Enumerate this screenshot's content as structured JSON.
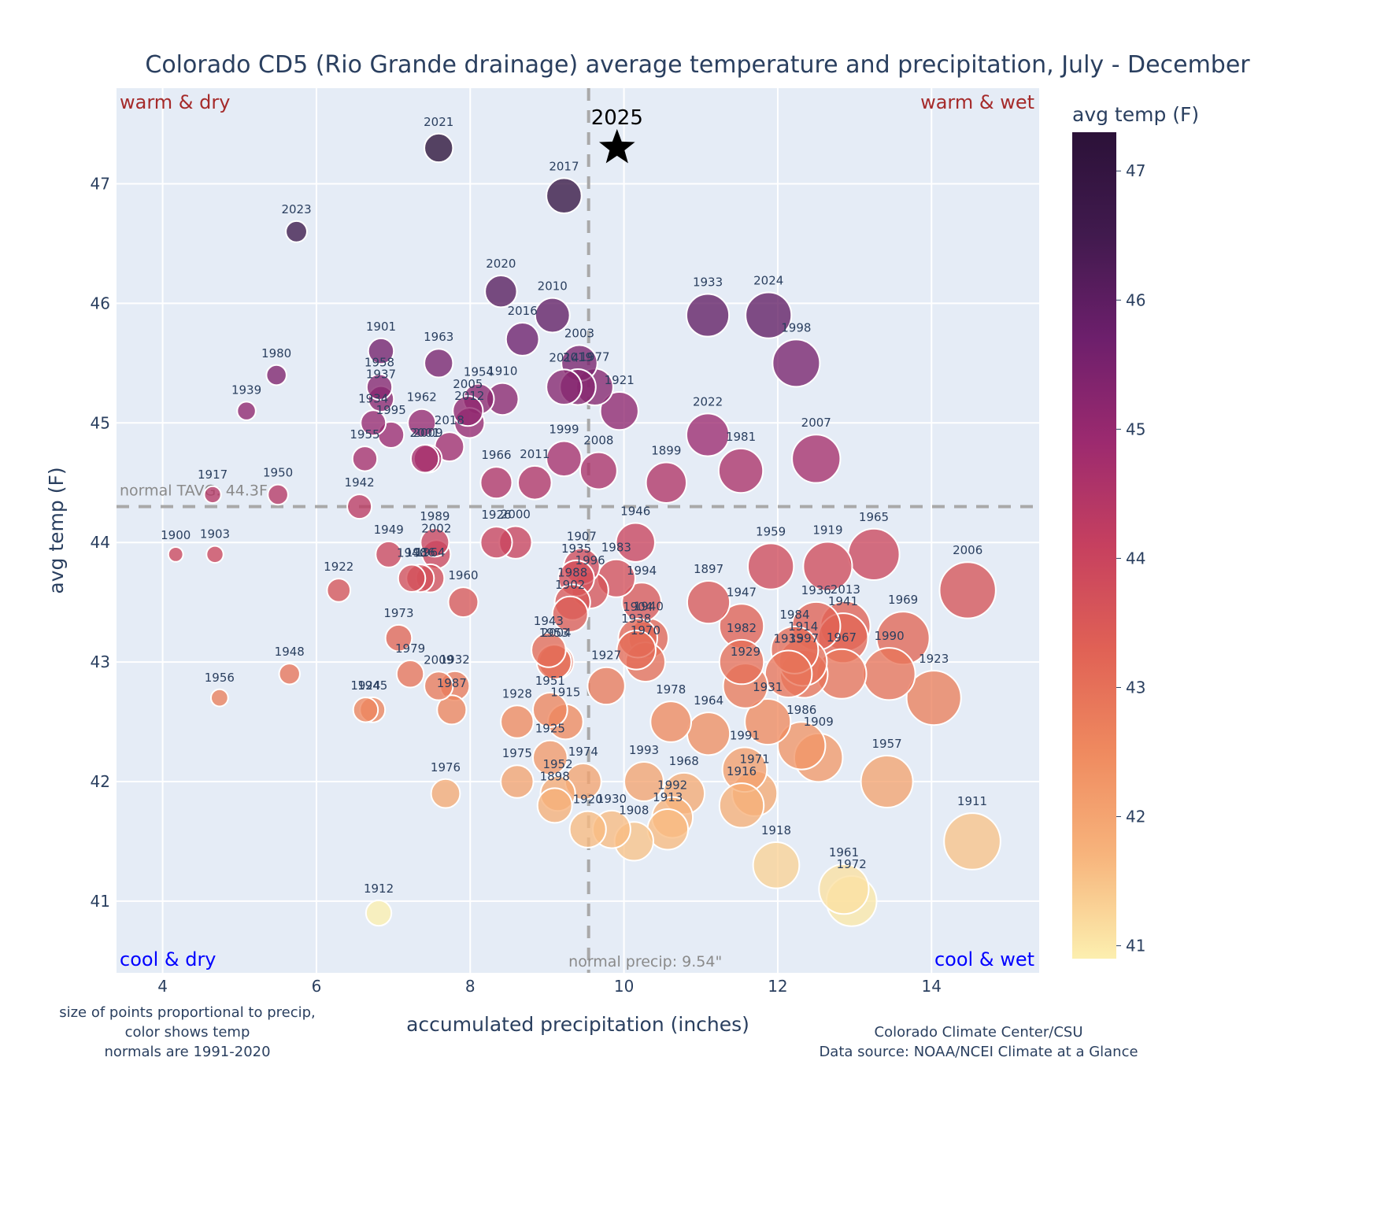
{
  "chart_data": {
    "type": "scatter",
    "title": "Colorado CD5 (Rio Grande drainage) average temperature and precipitation, July - December",
    "xlabel": "accumulated precipitation (inches)",
    "ylabel": "avg temp (F)",
    "xlim": [
      3.4,
      15.4
    ],
    "ylim": [
      40.4,
      47.8
    ],
    "xticks": [
      4,
      6,
      8,
      10,
      12,
      14
    ],
    "yticks": [
      41,
      42,
      43,
      44,
      45,
      46,
      47
    ],
    "grid": true,
    "colorbar": {
      "title": "avg temp (F)",
      "range": [
        40.9,
        47.3
      ],
      "ticks": [
        41,
        42,
        43,
        44,
        45,
        46,
        47
      ],
      "colorscale": [
        "#fcefaf",
        "#f7b47c",
        "#ef8a5f",
        "#e06155",
        "#c6405f",
        "#9c2a6f",
        "#6d1f6c",
        "#411a4e",
        "#2b1138"
      ]
    },
    "normals": {
      "temp": 44.3,
      "temp_label": "normal TAVG: 44.3F",
      "precip": 9.54,
      "precip_label": "normal precip: 9.54\""
    },
    "quadrant_labels": {
      "top_left": "warm & dry",
      "top_right": "warm & wet",
      "bottom_left": "cool & dry",
      "bottom_right": "cool & wet"
    },
    "current_year": {
      "label": "2025",
      "x": 9.91,
      "y": 47.3,
      "marker": "star"
    },
    "notes": {
      "left": [
        "size of points proportional to precip,",
        "color shows temp",
        "normals are 1991-2020"
      ],
      "right": [
        "Colorado Climate Center/CSU",
        "Data source: NOAA/NCEI Climate at a Glance"
      ]
    },
    "points": [
      {
        "year": "2021",
        "x": 7.59,
        "y": 47.3
      },
      {
        "year": "2017",
        "x": 9.22,
        "y": 46.9
      },
      {
        "year": "2023",
        "x": 5.74,
        "y": 46.6
      },
      {
        "year": "2020",
        "x": 8.4,
        "y": 46.1
      },
      {
        "year": "2010",
        "x": 9.07,
        "y": 45.9
      },
      {
        "year": "1933",
        "x": 11.09,
        "y": 45.9
      },
      {
        "year": "2024",
        "x": 11.88,
        "y": 45.9
      },
      {
        "year": "2016",
        "x": 8.68,
        "y": 45.7
      },
      {
        "year": "1998",
        "x": 12.24,
        "y": 45.5
      },
      {
        "year": "1901",
        "x": 6.84,
        "y": 45.6
      },
      {
        "year": "1963",
        "x": 7.59,
        "y": 45.5
      },
      {
        "year": "1980",
        "x": 5.48,
        "y": 45.4
      },
      {
        "year": "2003",
        "x": 9.42,
        "y": 45.5
      },
      {
        "year": "1958",
        "x": 6.82,
        "y": 45.3
      },
      {
        "year": "2014",
        "x": 9.22,
        "y": 45.3
      },
      {
        "year": "2019",
        "x": 9.4,
        "y": 45.3
      },
      {
        "year": "1977",
        "x": 9.62,
        "y": 45.3
      },
      {
        "year": "1937",
        "x": 6.84,
        "y": 45.2
      },
      {
        "year": "1954",
        "x": 8.11,
        "y": 45.2
      },
      {
        "year": "1910",
        "x": 8.42,
        "y": 45.2
      },
      {
        "year": "1939",
        "x": 5.09,
        "y": 45.1
      },
      {
        "year": "1921",
        "x": 9.94,
        "y": 45.1
      },
      {
        "year": "1934",
        "x": 6.74,
        "y": 45.0
      },
      {
        "year": "1962",
        "x": 7.37,
        "y": 45.0
      },
      {
        "year": "2005",
        "x": 7.97,
        "y": 45.1
      },
      {
        "year": "2012",
        "x": 7.99,
        "y": 45.0
      },
      {
        "year": "1995",
        "x": 6.97,
        "y": 44.9
      },
      {
        "year": "2022",
        "x": 11.09,
        "y": 44.9
      },
      {
        "year": "2018",
        "x": 7.73,
        "y": 44.8
      },
      {
        "year": "2001",
        "x": 7.41,
        "y": 44.7
      },
      {
        "year": "2009",
        "x": 7.45,
        "y": 44.7
      },
      {
        "year": "1955",
        "x": 6.63,
        "y": 44.7
      },
      {
        "year": "1999",
        "x": 9.22,
        "y": 44.7
      },
      {
        "year": "2007",
        "x": 12.5,
        "y": 44.7
      },
      {
        "year": "2008",
        "x": 9.67,
        "y": 44.6
      },
      {
        "year": "1981",
        "x": 11.52,
        "y": 44.6
      },
      {
        "year": "1966",
        "x": 8.34,
        "y": 44.5
      },
      {
        "year": "2011",
        "x": 8.84,
        "y": 44.5
      },
      {
        "year": "1899",
        "x": 10.55,
        "y": 44.5
      },
      {
        "year": "1917",
        "x": 4.65,
        "y": 44.4
      },
      {
        "year": "1950",
        "x": 5.5,
        "y": 44.4
      },
      {
        "year": "1942",
        "x": 6.56,
        "y": 44.3
      },
      {
        "year": "1926",
        "x": 8.34,
        "y": 44.0
      },
      {
        "year": "2000",
        "x": 8.59,
        "y": 44.0
      },
      {
        "year": "1946",
        "x": 10.15,
        "y": 44.0
      },
      {
        "year": "1989",
        "x": 7.54,
        "y": 44.0
      },
      {
        "year": "1900",
        "x": 4.17,
        "y": 43.9
      },
      {
        "year": "1903",
        "x": 4.68,
        "y": 43.9
      },
      {
        "year": "1949",
        "x": 6.94,
        "y": 43.9
      },
      {
        "year": "2002",
        "x": 7.56,
        "y": 43.9
      },
      {
        "year": "1965",
        "x": 13.25,
        "y": 43.9
      },
      {
        "year": "1959",
        "x": 11.91,
        "y": 43.8
      },
      {
        "year": "1919",
        "x": 12.65,
        "y": 43.8
      },
      {
        "year": "1907",
        "x": 9.45,
        "y": 43.8
      },
      {
        "year": "1940",
        "x": 7.24,
        "y": 43.7
      },
      {
        "year": "1986",
        "x": 7.35,
        "y": 43.7
      },
      {
        "year": "1964",
        "x": 7.48,
        "y": 43.7
      },
      {
        "year": "1935",
        "x": 9.38,
        "y": 43.7
      },
      {
        "year": "1983",
        "x": 9.9,
        "y": 43.7
      },
      {
        "year": "1996",
        "x": 9.56,
        "y": 43.6
      },
      {
        "year": "1922",
        "x": 6.29,
        "y": 43.6
      },
      {
        "year": "2006",
        "x": 14.47,
        "y": 43.6
      },
      {
        "year": "1988",
        "x": 9.33,
        "y": 43.5
      },
      {
        "year": "1994",
        "x": 10.23,
        "y": 43.5
      },
      {
        "year": "1897",
        "x": 11.1,
        "y": 43.5
      },
      {
        "year": "1960",
        "x": 7.91,
        "y": 43.5
      },
      {
        "year": "1902",
        "x": 9.3,
        "y": 43.4
      },
      {
        "year": "1936",
        "x": 12.5,
        "y": 43.3
      },
      {
        "year": "1947",
        "x": 11.53,
        "y": 43.3
      },
      {
        "year": "2013",
        "x": 12.88,
        "y": 43.3
      },
      {
        "year": "1941",
        "x": 12.85,
        "y": 43.2
      },
      {
        "year": "1969",
        "x": 13.63,
        "y": 43.2
      },
      {
        "year": "1973",
        "x": 7.07,
        "y": 43.2
      },
      {
        "year": "1904",
        "x": 10.18,
        "y": 43.2
      },
      {
        "year": "1940b",
        "x": 10.32,
        "y": 43.2
      },
      {
        "year": "1938",
        "x": 10.16,
        "y": 43.1
      },
      {
        "year": "1943",
        "x": 9.02,
        "y": 43.1
      },
      {
        "year": "1984",
        "x": 12.22,
        "y": 43.1
      },
      {
        "year": "1914",
        "x": 12.33,
        "y": 43.0
      },
      {
        "year": "1970",
        "x": 10.28,
        "y": 43.0
      },
      {
        "year": "1953",
        "x": 9.09,
        "y": 43.0
      },
      {
        "year": "2004",
        "x": 9.12,
        "y": 43.0
      },
      {
        "year": "1982",
        "x": 11.53,
        "y": 43.0
      },
      {
        "year": "1990",
        "x": 13.45,
        "y": 42.9
      },
      {
        "year": "1935b",
        "x": 12.14,
        "y": 42.9
      },
      {
        "year": "1997",
        "x": 12.34,
        "y": 42.9
      },
      {
        "year": "1967",
        "x": 12.83,
        "y": 42.9
      },
      {
        "year": "1948",
        "x": 5.65,
        "y": 42.9
      },
      {
        "year": "1979",
        "x": 7.22,
        "y": 42.9
      },
      {
        "year": "1929",
        "x": 11.58,
        "y": 42.8
      },
      {
        "year": "2009b",
        "x": 7.59,
        "y": 42.8
      },
      {
        "year": "1932",
        "x": 7.8,
        "y": 42.8
      },
      {
        "year": "1927",
        "x": 9.77,
        "y": 42.8
      },
      {
        "year": "1956",
        "x": 4.74,
        "y": 42.7
      },
      {
        "year": "1923",
        "x": 14.03,
        "y": 42.7
      },
      {
        "year": "1924",
        "x": 6.64,
        "y": 42.6
      },
      {
        "year": "1945",
        "x": 6.73,
        "y": 42.6
      },
      {
        "year": "1987",
        "x": 7.76,
        "y": 42.6
      },
      {
        "year": "1951",
        "x": 9.04,
        "y": 42.6
      },
      {
        "year": "1931",
        "x": 11.87,
        "y": 42.5
      },
      {
        "year": "1928",
        "x": 8.61,
        "y": 42.5
      },
      {
        "year": "1915",
        "x": 9.24,
        "y": 42.5
      },
      {
        "year": "1978",
        "x": 10.61,
        "y": 42.5
      },
      {
        "year": "1964b",
        "x": 11.1,
        "y": 42.4
      },
      {
        "year": "1986b",
        "x": 12.31,
        "y": 42.3
      },
      {
        "year": "1909",
        "x": 12.53,
        "y": 42.2
      },
      {
        "year": "1925",
        "x": 9.04,
        "y": 42.2
      },
      {
        "year": "1991",
        "x": 11.57,
        "y": 42.1
      },
      {
        "year": "1975",
        "x": 8.61,
        "y": 42.0
      },
      {
        "year": "1974",
        "x": 9.47,
        "y": 42.0
      },
      {
        "year": "1993",
        "x": 10.26,
        "y": 42.0
      },
      {
        "year": "1957",
        "x": 13.42,
        "y": 42.0
      },
      {
        "year": "1952",
        "x": 9.14,
        "y": 41.9
      },
      {
        "year": "1971",
        "x": 11.7,
        "y": 41.9
      },
      {
        "year": "1976",
        "x": 7.68,
        "y": 41.9
      },
      {
        "year": "1968",
        "x": 10.78,
        "y": 41.9
      },
      {
        "year": "1898",
        "x": 9.1,
        "y": 41.8
      },
      {
        "year": "1916",
        "x": 11.53,
        "y": 41.8
      },
      {
        "year": "1992",
        "x": 10.63,
        "y": 41.7
      },
      {
        "year": "1920",
        "x": 9.53,
        "y": 41.6
      },
      {
        "year": "1930",
        "x": 9.84,
        "y": 41.6
      },
      {
        "year": "1913",
        "x": 10.57,
        "y": 41.6
      },
      {
        "year": "1908",
        "x": 10.13,
        "y": 41.5
      },
      {
        "year": "1911",
        "x": 14.53,
        "y": 41.5
      },
      {
        "year": "1918",
        "x": 11.98,
        "y": 41.3
      },
      {
        "year": "1961",
        "x": 12.86,
        "y": 41.1
      },
      {
        "year": "1972",
        "x": 12.96,
        "y": 41.0
      },
      {
        "year": "1912",
        "x": 6.81,
        "y": 40.9
      }
    ]
  }
}
